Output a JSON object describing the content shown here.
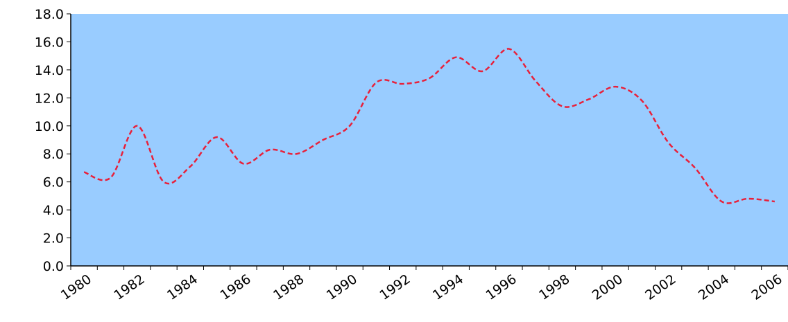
{
  "chart_data": {
    "type": "line",
    "categories": [
      "1980",
      null,
      "1982",
      null,
      "1984",
      null,
      "1986",
      null,
      "1988",
      null,
      "1990",
      null,
      "1992",
      null,
      "1994",
      null,
      "1996",
      null,
      "1998",
      null,
      "2000",
      null,
      "2002",
      null,
      "2004",
      null,
      "2006"
    ],
    "series": [
      {
        "color": "#e8203a",
        "values": [
          6.7,
          6.3,
          10.0,
          6.0,
          7.1,
          9.2,
          7.3,
          8.3,
          8.0,
          9.0,
          10.0,
          13.1,
          13.0,
          13.4,
          14.9,
          13.9,
          15.5,
          13.2,
          11.4,
          11.9,
          12.8,
          11.8,
          8.8,
          7.0,
          4.6,
          4.8,
          4.6
        ]
      }
    ],
    "ylim": [
      0,
      18
    ],
    "yticks": [
      {
        "value": 0,
        "label": "0.0"
      },
      {
        "value": 2,
        "label": "2.0"
      },
      {
        "value": 4,
        "label": "4.0"
      },
      {
        "value": 6,
        "label": "6.0"
      },
      {
        "value": 8,
        "label": "8.0"
      },
      {
        "value": 10,
        "label": "10.0"
      },
      {
        "value": 12,
        "label": "12.0"
      },
      {
        "value": 14,
        "label": "14.0"
      },
      {
        "value": 16,
        "label": "16.0"
      },
      {
        "value": 18,
        "label": "18.0"
      }
    ],
    "plot_background": "#99ccff",
    "line_style": "dashed"
  }
}
